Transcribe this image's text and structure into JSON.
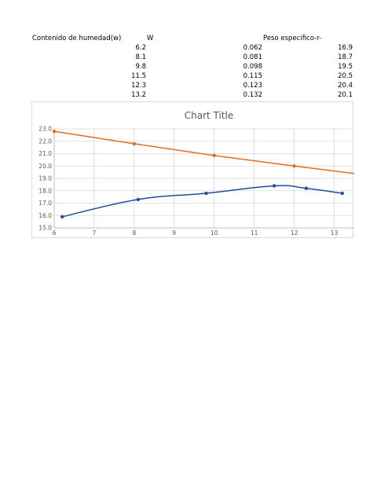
{
  "table": {
    "headers": {
      "contenido": "Contenido de humedad(w)",
      "w": "W",
      "peso": "Peso especifico-r-"
    },
    "rows": [
      [
        "6.2",
        "0.062",
        "16.9"
      ],
      [
        "8.1",
        "0.081",
        "18.7"
      ],
      [
        "9.8",
        "0.098",
        "19.5"
      ],
      [
        "11.5",
        "0.115",
        "20.5"
      ],
      [
        "12.3",
        "0.123",
        "20.4"
      ],
      [
        "13.2",
        "0.132",
        "20.1"
      ]
    ]
  },
  "chart_data": {
    "type": "line",
    "title": "Chart Title",
    "xlabel": "",
    "ylabel": "",
    "xlim": [
      6,
      13.5
    ],
    "ylim": [
      15.0,
      23.0
    ],
    "x_ticks": [
      "6",
      "7",
      "8",
      "9",
      "10",
      "11",
      "12",
      "13"
    ],
    "y_ticks": [
      "15.0",
      "16.0",
      "17.0",
      "18.0",
      "19.0",
      "20.0",
      "21.0",
      "22.0",
      "23.0"
    ],
    "grid": true,
    "legend": "none",
    "series": [
      {
        "color": "#1f4e99",
        "smooth": true,
        "points": [
          [
            6.2,
            15.9
          ],
          [
            8.1,
            17.3
          ],
          [
            9.8,
            17.8
          ],
          [
            11.5,
            18.4
          ],
          [
            12.3,
            18.2
          ],
          [
            13.2,
            17.8
          ]
        ]
      },
      {
        "color": "#e06c1f",
        "smooth": false,
        "points": [
          [
            6.0,
            22.8
          ],
          [
            8.0,
            21.8
          ],
          [
            10.0,
            20.85
          ],
          [
            12.0,
            20.0
          ],
          [
            13.5,
            19.4
          ]
        ]
      }
    ]
  }
}
